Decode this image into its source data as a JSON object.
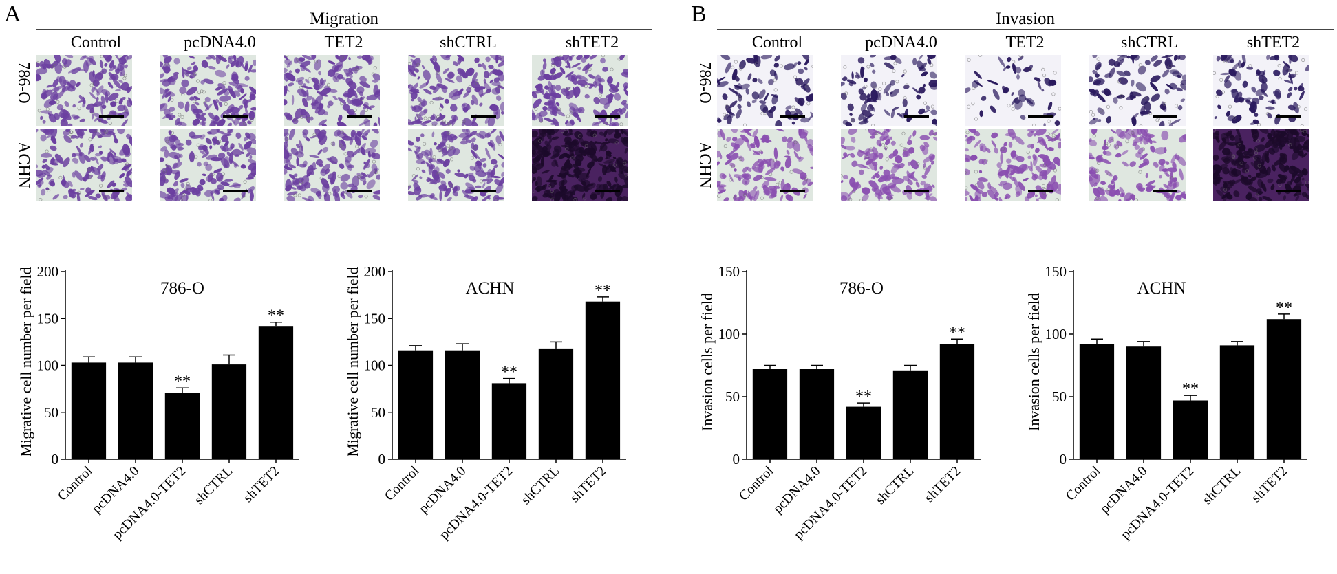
{
  "panels": [
    {
      "letter": "A",
      "assay": "Migration",
      "conditions": [
        "Control",
        "pcDNA4.0",
        "TET2",
        "shCTRL",
        "shTET2"
      ],
      "cell_lines": [
        "786-O",
        "ACHN"
      ]
    },
    {
      "letter": "B",
      "assay": "Invasion",
      "conditions": [
        "Control",
        "pcDNA4.0",
        "TET2",
        "shCTRL",
        "shTET2"
      ],
      "cell_lines": [
        "786-O",
        "ACHN"
      ]
    }
  ],
  "colors": {
    "bar": "#000000",
    "background": "#ffffff",
    "migration_stain": "#6b3fa0",
    "invasion_stain_786O": "#2a1a5e",
    "invasion_stain_ACHN": "#8a4fb0",
    "field_bg": "#dfe7e0"
  },
  "chart_data": [
    {
      "type": "bar",
      "title": "786-O",
      "ylabel": "Migrative cell number per field",
      "ylim": [
        0,
        200
      ],
      "yticks": [
        0,
        50,
        100,
        150,
        200
      ],
      "categories": [
        "Control",
        "pcDNA4.0",
        "pcDNA4.0-TET2",
        "shCTRL",
        "shTET2"
      ],
      "values": [
        103,
        103,
        71,
        101,
        142
      ],
      "errors": [
        6,
        6,
        5,
        10,
        4
      ],
      "annotations": [
        "",
        "",
        "**",
        "",
        "**"
      ]
    },
    {
      "type": "bar",
      "title": "ACHN",
      "ylabel": "Migrative cell number per field",
      "ylim": [
        0,
        200
      ],
      "yticks": [
        0,
        50,
        100,
        150,
        200
      ],
      "categories": [
        "Control",
        "pcDNA4.0",
        "pcDNA4.0-TET2",
        "shCTRL",
        "shTET2"
      ],
      "values": [
        116,
        116,
        81,
        118,
        168
      ],
      "errors": [
        5,
        7,
        5,
        7,
        5
      ],
      "annotations": [
        "",
        "",
        "**",
        "",
        "**"
      ]
    },
    {
      "type": "bar",
      "title": "786-O",
      "ylabel": "Invasion cells per field",
      "ylim": [
        0,
        150
      ],
      "yticks": [
        0,
        50,
        100,
        150
      ],
      "categories": [
        "Control",
        "pcDNA4.0",
        "pcDNA4.0-TET2",
        "shCTRL",
        "shTET2"
      ],
      "values": [
        72,
        72,
        42,
        71,
        92
      ],
      "errors": [
        3,
        3,
        3,
        4,
        4
      ],
      "annotations": [
        "",
        "",
        "**",
        "",
        "**"
      ]
    },
    {
      "type": "bar",
      "title": "ACHN",
      "ylabel": "Invasion cells per field",
      "ylim": [
        0,
        150
      ],
      "yticks": [
        0,
        50,
        100,
        150
      ],
      "categories": [
        "Control",
        "pcDNA4.0",
        "pcDNA4.0-TET2",
        "shCTRL",
        "shTET2"
      ],
      "values": [
        92,
        90,
        47,
        91,
        112
      ],
      "errors": [
        4,
        4,
        4,
        3,
        4
      ],
      "annotations": [
        "",
        "",
        "**",
        "",
        "**"
      ]
    }
  ]
}
